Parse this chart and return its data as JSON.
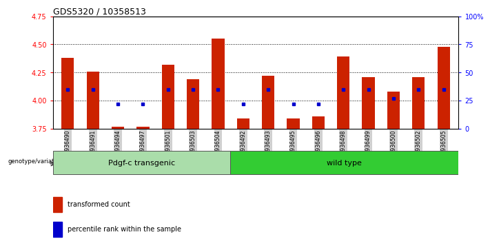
{
  "title": "GDS5320 / 10358513",
  "samples": [
    "GSM936490",
    "GSM936491",
    "GSM936494",
    "GSM936497",
    "GSM936501",
    "GSM936503",
    "GSM936504",
    "GSM936492",
    "GSM936493",
    "GSM936495",
    "GSM936496",
    "GSM936498",
    "GSM936499",
    "GSM936500",
    "GSM936502",
    "GSM936505"
  ],
  "transformed_count": [
    4.38,
    4.26,
    3.765,
    3.765,
    4.32,
    4.19,
    4.55,
    3.84,
    4.22,
    3.84,
    3.86,
    4.39,
    4.21,
    4.08,
    4.21,
    4.48
  ],
  "percentile_pct": [
    35,
    35,
    22,
    22,
    35,
    35,
    35,
    22,
    35,
    22,
    22,
    35,
    35,
    27,
    35,
    35
  ],
  "group_labels": [
    "Pdgf-c transgenic",
    "wild type"
  ],
  "group_n": [
    7,
    9
  ],
  "group_color1": "#aaddaa",
  "group_color2": "#33cc33",
  "ymin": 3.75,
  "ymax": 4.75,
  "yticks_left": [
    3.75,
    4.0,
    4.25,
    4.5,
    4.75
  ],
  "yticks_right": [
    0,
    25,
    50,
    75,
    100
  ],
  "right_ylabels": [
    "0",
    "25",
    "50",
    "75",
    "100%"
  ],
  "bar_color": "#cc2200",
  "dot_color": "#0000cc",
  "grid_lines": [
    4.0,
    4.25,
    4.5
  ],
  "legend_items": [
    "transformed count",
    "percentile rank within the sample"
  ],
  "legend_colors": [
    "#cc2200",
    "#0000cc"
  ],
  "xtick_bg": "#d0d0d0"
}
